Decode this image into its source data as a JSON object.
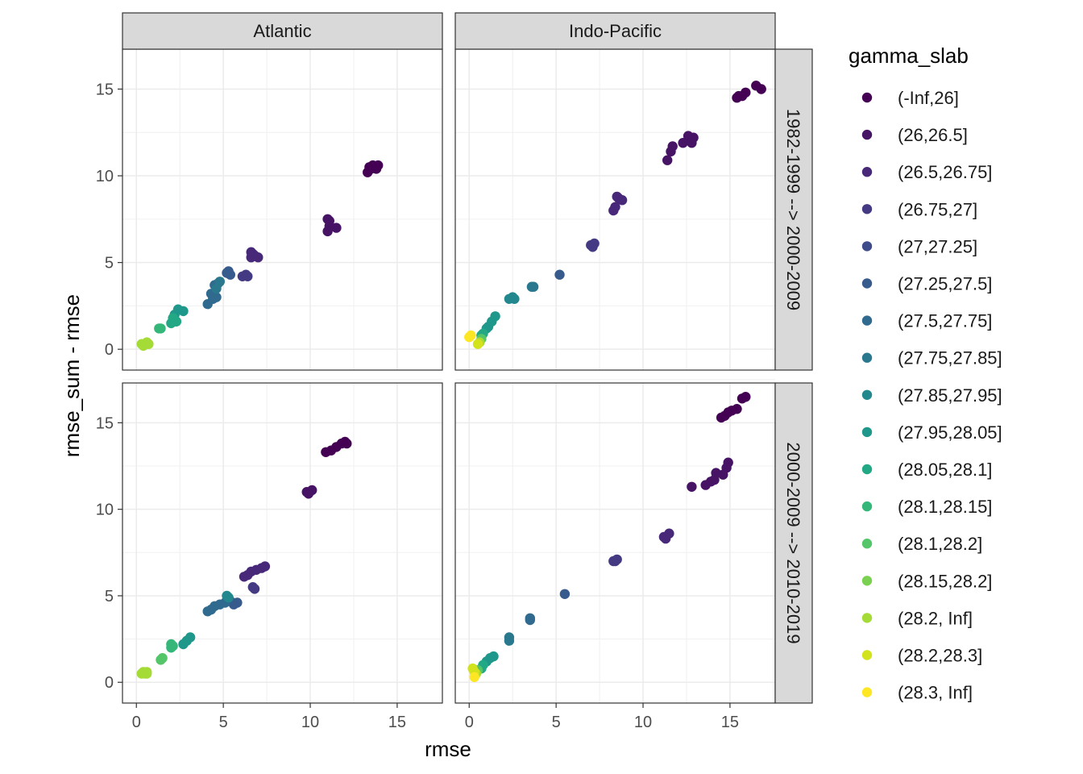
{
  "chart_data": {
    "type": "scatter",
    "xlabel": "rmse",
    "ylabel": "rmse_sum - rmse",
    "xlim": [
      -0.8,
      17.6
    ],
    "ylim": [
      -1.2,
      17.3
    ],
    "x_ticks": [
      0,
      5,
      10,
      15
    ],
    "y_ticks": [
      0,
      5,
      10,
      15
    ],
    "columns": [
      "Atlantic",
      "Indo-Pacific"
    ],
    "rows": [
      "1982-1999 --> 2000-2009",
      "2000-2009 --> 2010-2019"
    ],
    "legend": {
      "title": "gamma_slab",
      "entries": [
        {
          "label": "(-Inf,26]",
          "color": "#440154"
        },
        {
          "label": "(26,26.5]",
          "color": "#471365"
        },
        {
          "label": "(26.5,26.75]",
          "color": "#482878"
        },
        {
          "label": "(26.75,27]",
          "color": "#443A83"
        },
        {
          "label": "(27,27.25]",
          "color": "#3E4C8A"
        },
        {
          "label": "(27.25,27.5]",
          "color": "#375B8D"
        },
        {
          "label": "(27.5,27.75]",
          "color": "#306A8E"
        },
        {
          "label": "(27.75,27.85]",
          "color": "#29788E"
        },
        {
          "label": "(27.85,27.95]",
          "color": "#23888E"
        },
        {
          "label": "(27.95,28.05]",
          "color": "#1F988B"
        },
        {
          "label": "(28.05,28.1]",
          "color": "#22A884"
        },
        {
          "label": "(28.1,28.15]",
          "color": "#35B779"
        },
        {
          "label": "(28.1,28.2]",
          "color": "#54C568"
        },
        {
          "label": "(28.15,28.2]",
          "color": "#7AD151"
        },
        {
          "label": "(28.2, Inf]",
          "color": "#A5DB36"
        },
        {
          "label": "(28.2,28.3]",
          "color": "#D2E21B"
        },
        {
          "label": "(28.3, Inf]",
          "color": "#FDE725"
        }
      ]
    },
    "panels": [
      {
        "column": "Atlantic",
        "row": "1982-1999 --> 2000-2009",
        "points": [
          [
            13.3,
            10.2,
            0
          ],
          [
            13.5,
            10.4,
            0
          ],
          [
            13.7,
            10.5,
            0
          ],
          [
            13.9,
            10.6,
            0
          ],
          [
            13.4,
            10.5,
            0
          ],
          [
            13.8,
            10.4,
            0
          ],
          [
            13.6,
            10.6,
            0
          ],
          [
            11.0,
            7.5,
            1
          ],
          [
            11.1,
            7.4,
            1
          ],
          [
            11.0,
            6.8,
            1
          ],
          [
            11.5,
            7.0,
            1
          ],
          [
            11.1,
            7.1,
            1
          ],
          [
            6.6,
            5.6,
            2
          ],
          [
            6.8,
            5.4,
            2
          ],
          [
            7.0,
            5.3,
            2
          ],
          [
            6.6,
            5.3,
            2
          ],
          [
            6.7,
            5.5,
            2
          ],
          [
            6.1,
            4.2,
            3
          ],
          [
            6.4,
            4.2,
            3
          ],
          [
            6.3,
            4.3,
            3
          ],
          [
            5.3,
            4.5,
            5
          ],
          [
            5.4,
            4.3,
            5
          ],
          [
            5.2,
            4.4,
            5
          ],
          [
            4.5,
            3.7,
            6
          ],
          [
            4.7,
            3.8,
            6
          ],
          [
            4.6,
            3.0,
            6
          ],
          [
            4.3,
            3.2,
            6
          ],
          [
            4.1,
            2.6,
            6
          ],
          [
            4.4,
            2.9,
            6
          ],
          [
            4.8,
            3.9,
            7
          ],
          [
            4.6,
            3.5,
            7
          ],
          [
            2.7,
            2.2,
            9
          ],
          [
            2.4,
            2.3,
            9
          ],
          [
            2.2,
            2.0,
            9
          ],
          [
            2.1,
            1.8,
            10
          ],
          [
            2.3,
            1.6,
            10
          ],
          [
            2.0,
            1.5,
            10
          ],
          [
            1.4,
            1.2,
            11
          ],
          [
            1.3,
            1.2,
            11
          ],
          [
            0.5,
            0.3,
            14
          ],
          [
            0.3,
            0.3,
            14
          ],
          [
            0.6,
            0.4,
            14
          ],
          [
            0.4,
            0.2,
            14
          ],
          [
            0.7,
            0.3,
            14
          ]
        ]
      },
      {
        "column": "Indo-Pacific",
        "row": "1982-1999 --> 2000-2009",
        "points": [
          [
            16.5,
            15.2,
            0
          ],
          [
            16.8,
            15.0,
            0
          ],
          [
            15.4,
            14.5,
            0
          ],
          [
            15.7,
            14.6,
            0
          ],
          [
            15.9,
            14.8,
            0
          ],
          [
            15.5,
            14.6,
            0
          ],
          [
            12.6,
            12.3,
            1
          ],
          [
            12.9,
            12.2,
            1
          ],
          [
            12.3,
            11.9,
            1
          ],
          [
            12.8,
            11.9,
            1
          ],
          [
            11.7,
            11.7,
            1
          ],
          [
            11.6,
            11.4,
            1
          ],
          [
            11.4,
            10.9,
            1
          ],
          [
            8.5,
            8.8,
            2
          ],
          [
            8.6,
            8.7,
            2
          ],
          [
            8.8,
            8.6,
            2
          ],
          [
            8.3,
            8.0,
            2
          ],
          [
            8.4,
            8.2,
            2
          ],
          [
            7.0,
            6.0,
            3
          ],
          [
            7.2,
            6.1,
            3
          ],
          [
            7.1,
            5.9,
            3
          ],
          [
            5.2,
            4.3,
            5
          ],
          [
            3.6,
            3.6,
            7
          ],
          [
            3.7,
            3.6,
            7
          ],
          [
            2.3,
            2.9,
            8
          ],
          [
            2.5,
            3.0,
            8
          ],
          [
            2.6,
            2.9,
            8
          ],
          [
            1.5,
            1.9,
            9
          ],
          [
            1.3,
            1.6,
            9
          ],
          [
            1.1,
            1.3,
            9
          ],
          [
            1.0,
            1.2,
            9
          ],
          [
            0.8,
            0.9,
            10
          ],
          [
            0.7,
            0.8,
            10
          ],
          [
            0.7,
            0.6,
            12
          ],
          [
            0.6,
            0.4,
            14
          ],
          [
            0.0,
            0.7,
            16
          ],
          [
            0.1,
            0.8,
            16
          ],
          [
            0.5,
            0.3,
            15
          ]
        ]
      },
      {
        "column": "Atlantic",
        "row": "2000-2009 --> 2010-2019",
        "points": [
          [
            12.0,
            13.9,
            0
          ],
          [
            11.8,
            13.8,
            0
          ],
          [
            11.5,
            13.6,
            0
          ],
          [
            11.2,
            13.4,
            0
          ],
          [
            10.9,
            13.3,
            0
          ],
          [
            12.1,
            13.8,
            0
          ],
          [
            9.8,
            11.0,
            1
          ],
          [
            10.1,
            11.1,
            1
          ],
          [
            9.9,
            10.9,
            1
          ],
          [
            7.2,
            6.6,
            2
          ],
          [
            7.4,
            6.7,
            2
          ],
          [
            6.9,
            6.5,
            2
          ],
          [
            6.6,
            6.4,
            2
          ],
          [
            6.4,
            6.2,
            2
          ],
          [
            6.2,
            6.1,
            2
          ],
          [
            6.7,
            5.5,
            3
          ],
          [
            6.8,
            5.4,
            3
          ],
          [
            5.8,
            4.6,
            5
          ],
          [
            5.6,
            4.5,
            5
          ],
          [
            5.4,
            4.7,
            5
          ],
          [
            5.1,
            4.6,
            6
          ],
          [
            4.8,
            4.5,
            6
          ],
          [
            4.5,
            4.4,
            6
          ],
          [
            4.3,
            4.2,
            6
          ],
          [
            4.1,
            4.1,
            6
          ],
          [
            5.2,
            5.0,
            8
          ],
          [
            5.3,
            4.9,
            8
          ],
          [
            3.1,
            2.6,
            9
          ],
          [
            2.9,
            2.4,
            9
          ],
          [
            2.7,
            2.2,
            9
          ],
          [
            2.1,
            2.1,
            11
          ],
          [
            2.0,
            2.2,
            11
          ],
          [
            2.0,
            2.0,
            11
          ],
          [
            1.5,
            1.4,
            12
          ],
          [
            1.4,
            1.3,
            12
          ],
          [
            0.6,
            0.6,
            14
          ],
          [
            0.5,
            0.5,
            14
          ],
          [
            0.3,
            0.5,
            14
          ],
          [
            0.4,
            0.6,
            14
          ],
          [
            0.6,
            0.5,
            14
          ]
        ]
      },
      {
        "column": "Indo-Pacific",
        "row": "2000-2009 --> 2010-2019",
        "points": [
          [
            15.9,
            16.5,
            0
          ],
          [
            15.7,
            16.4,
            0
          ],
          [
            15.4,
            15.8,
            0
          ],
          [
            15.1,
            15.7,
            0
          ],
          [
            14.9,
            15.6,
            0
          ],
          [
            14.5,
            15.3,
            0
          ],
          [
            14.7,
            15.4,
            0
          ],
          [
            14.9,
            12.7,
            1
          ],
          [
            14.8,
            12.4,
            1
          ],
          [
            14.6,
            12.0,
            1
          ],
          [
            14.2,
            12.1,
            1
          ],
          [
            14.1,
            11.7,
            1
          ],
          [
            13.9,
            11.6,
            1
          ],
          [
            13.6,
            11.4,
            1
          ],
          [
            12.8,
            11.3,
            1
          ],
          [
            11.5,
            8.6,
            2
          ],
          [
            11.2,
            8.4,
            2
          ],
          [
            11.3,
            8.3,
            2
          ],
          [
            8.4,
            7.0,
            3
          ],
          [
            8.5,
            7.1,
            3
          ],
          [
            8.3,
            7.0,
            3
          ],
          [
            5.5,
            5.1,
            5
          ],
          [
            3.5,
            3.7,
            6
          ],
          [
            3.5,
            3.6,
            6
          ],
          [
            2.3,
            2.6,
            7
          ],
          [
            2.3,
            2.4,
            7
          ],
          [
            1.4,
            1.5,
            9
          ],
          [
            1.2,
            1.4,
            9
          ],
          [
            1.0,
            1.2,
            9
          ],
          [
            0.8,
            1.0,
            10
          ],
          [
            0.7,
            0.8,
            10
          ],
          [
            0.5,
            0.7,
            12
          ],
          [
            0.4,
            0.5,
            14
          ],
          [
            0.3,
            0.6,
            15
          ],
          [
            0.2,
            0.8,
            15
          ],
          [
            0.3,
            0.3,
            16
          ]
        ]
      }
    ]
  }
}
